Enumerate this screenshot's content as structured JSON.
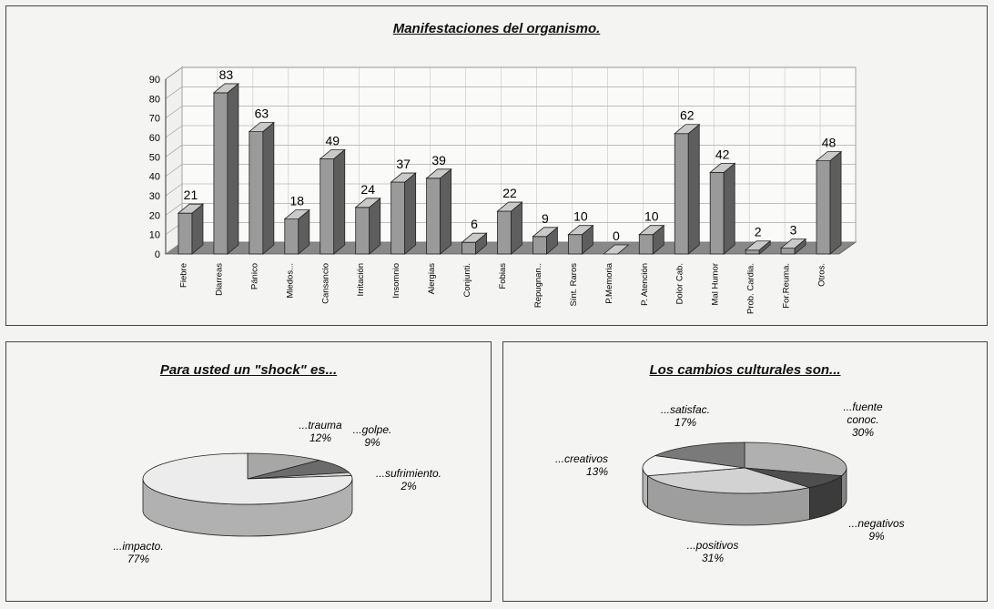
{
  "chart_data": [
    {
      "type": "bar",
      "title": "Manifestaciones del organismo.",
      "ylim": [
        0,
        90
      ],
      "yticks": [
        0,
        10,
        20,
        30,
        40,
        50,
        60,
        70,
        80,
        90
      ],
      "grid": true,
      "categories": [
        "Fiebre",
        "Diarreas",
        "Pánico",
        "Miedos...",
        "Cansancio",
        "Irritación",
        "Insomnio",
        "Alergias",
        "Conjunti.",
        "Fobias",
        "Repugnan..",
        "Sínt. Raros",
        "P.Memoria",
        "P. Atención",
        "Dolor Cab.",
        "Mal Humor",
        "Prob. Cardia.",
        "For.Reuma.",
        "Otros."
      ],
      "values": [
        21,
        83,
        63,
        18,
        49,
        24,
        37,
        39,
        6,
        22,
        9,
        10,
        0,
        10,
        62,
        42,
        2,
        3,
        48
      ],
      "colors": {
        "front": "#9a9a9a",
        "side": "#5e5e5e",
        "top": "#c9c9c9"
      }
    },
    {
      "type": "pie",
      "title": "Para usted un \"shock\" es...",
      "slices": [
        {
          "lines": [
            "...trauma",
            "12%"
          ],
          "value": 12,
          "color": "#a7a7a7"
        },
        {
          "lines": [
            "...golpe.",
            "9%"
          ],
          "value": 9,
          "color": "#6b6b6b"
        },
        {
          "lines": [
            "...sufrimiento.",
            "2%"
          ],
          "value": 2,
          "color": "#d6d6d6"
        },
        {
          "lines": [
            "...impacto.",
            "77%"
          ],
          "value": 77,
          "color": "#ececec"
        }
      ]
    },
    {
      "type": "pie",
      "title": "Los cambios culturales son...",
      "slices": [
        {
          "lines": [
            "...fuente",
            "conoc.",
            "30%"
          ],
          "value": 30,
          "color": "#b0b0b0"
        },
        {
          "lines": [
            "...negativos",
            "9%"
          ],
          "value": 9,
          "color": "#4e4e4e"
        },
        {
          "lines": [
            "...positivos",
            "31%"
          ],
          "value": 31,
          "color": "#d2d2d2"
        },
        {
          "lines": [
            "...creativos",
            "13%"
          ],
          "value": 13,
          "color": "#f2f2f2"
        },
        {
          "lines": [
            "...satisfac.",
            "17%"
          ],
          "value": 17,
          "color": "#7a7a7a"
        }
      ]
    }
  ]
}
